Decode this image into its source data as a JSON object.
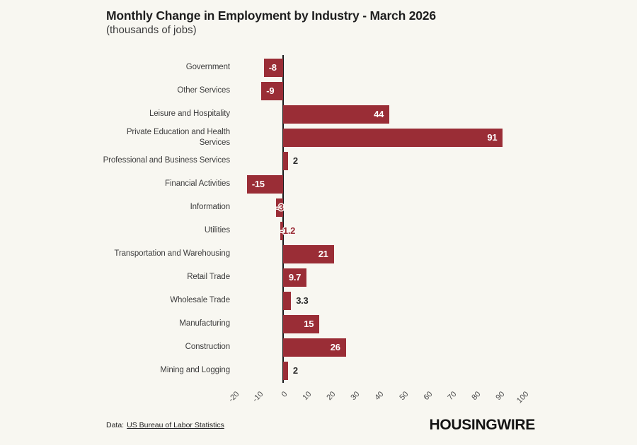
{
  "page": {
    "background_color": "#f8f7f1"
  },
  "header": {
    "title": "Monthly Change in Employment by Industry - March 2026",
    "subtitle": "(thousands of jobs)"
  },
  "footer": {
    "source_prefix": "Data:",
    "source_link_text": "US Bureau of Labor Statistics",
    "brand": "HOUSINGWIRE"
  },
  "chart_data": {
    "type": "bar",
    "orientation": "horizontal",
    "title": "Monthly Change in Employment by Industry - March 2026",
    "subtitle": "(thousands of jobs)",
    "unit": "thousands of jobs",
    "bar_color": "#9a2d36",
    "axis_color": "#1a1a1a",
    "categories": [
      "Government",
      "Other Services",
      "Leisure and Hospitality",
      "Private Education and Health\nServices",
      "Professional and Business Services",
      "Financial Activities",
      "Information",
      "Utilities",
      "Transportation and Warehousing",
      "Retail Trade",
      "Wholesale Trade",
      "Manufacturing",
      "Construction",
      "Mining and Logging"
    ],
    "values": [
      -8,
      -9,
      44,
      91,
      2,
      -15,
      -3,
      -1.2,
      21,
      9.7,
      3.3,
      15,
      26,
      2
    ],
    "value_label_placement": [
      "inside",
      "inside",
      "inside",
      "inside",
      "outside",
      "inside",
      "outlined",
      "outlined",
      "inside",
      "inside",
      "outside",
      "inside",
      "inside",
      "outside"
    ],
    "x_ticks": [
      -20,
      -10,
      0,
      10,
      20,
      30,
      40,
      50,
      60,
      70,
      80,
      90,
      100
    ],
    "xlim": [
      -20,
      100
    ],
    "grid": false,
    "tick_rotation_deg": 45,
    "legend": "none"
  }
}
